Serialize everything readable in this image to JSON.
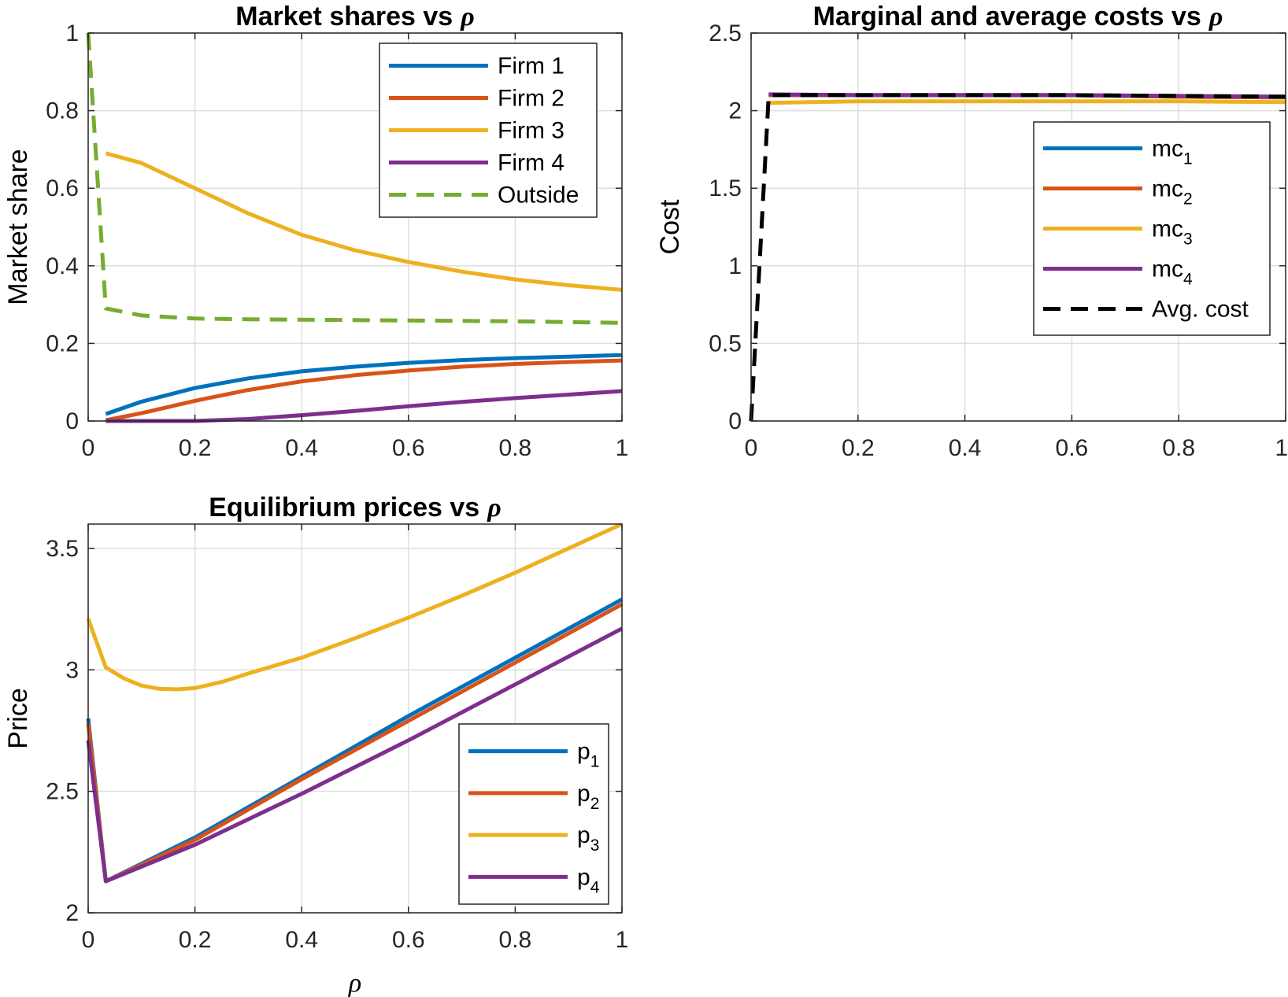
{
  "colors": {
    "c1": "#0072BD",
    "c2": "#D95319",
    "c3": "#EDB120",
    "c4": "#7E2F8E",
    "c5": "#77AC30",
    "avg": "#000000",
    "grid": "#dedede",
    "axis": "#262626"
  },
  "chart_data": [
    {
      "type": "line",
      "title": "Market shares vs",
      "title_symbol": "ρ",
      "ylabel": "Market share",
      "xlabel": "",
      "xlim": [
        0,
        1
      ],
      "ylim": [
        0,
        1
      ],
      "xticks": [
        0,
        0.2,
        0.4,
        0.6,
        0.8,
        1
      ],
      "xtick_labels": [
        "0",
        "0.2",
        "0.4",
        "0.6",
        "0.8",
        "1"
      ],
      "yticks": [
        0,
        0.2,
        0.4,
        0.6,
        0.8,
        1
      ],
      "ytick_labels": [
        "0",
        "0.2",
        "0.4",
        "0.6",
        "0.8",
        "1"
      ],
      "grid": true,
      "legend_position": "top-right",
      "series": [
        {
          "name": "Firm 1",
          "color": "c1",
          "dash": false,
          "x": [
            0.033,
            0.1,
            0.2,
            0.3,
            0.4,
            0.5,
            0.6,
            0.7,
            0.8,
            0.9,
            1.0
          ],
          "y": [
            0.018,
            0.05,
            0.085,
            0.11,
            0.128,
            0.14,
            0.15,
            0.157,
            0.162,
            0.166,
            0.17
          ]
        },
        {
          "name": "Firm 2",
          "color": "c2",
          "dash": false,
          "x": [
            0.033,
            0.1,
            0.2,
            0.3,
            0.4,
            0.5,
            0.6,
            0.7,
            0.8,
            0.9,
            1.0
          ],
          "y": [
            0.002,
            0.02,
            0.052,
            0.08,
            0.102,
            0.118,
            0.13,
            0.14,
            0.147,
            0.152,
            0.156
          ]
        },
        {
          "name": "Firm 3",
          "color": "c3",
          "dash": false,
          "x": [
            0.033,
            0.1,
            0.2,
            0.3,
            0.4,
            0.5,
            0.6,
            0.7,
            0.8,
            0.9,
            1.0
          ],
          "y": [
            0.69,
            0.665,
            0.6,
            0.535,
            0.48,
            0.44,
            0.41,
            0.385,
            0.365,
            0.35,
            0.338
          ]
        },
        {
          "name": "Firm 4",
          "color": "c4",
          "dash": false,
          "x": [
            0.033,
            0.1,
            0.2,
            0.3,
            0.4,
            0.5,
            0.6,
            0.7,
            0.8,
            0.9,
            1.0
          ],
          "y": [
            0.0,
            0.0,
            0.0,
            0.005,
            0.015,
            0.026,
            0.038,
            0.049,
            0.059,
            0.068,
            0.077
          ]
        },
        {
          "name": "Outside",
          "color": "c5",
          "dash": true,
          "x": [
            0.0,
            0.033,
            0.1,
            0.2,
            0.3,
            0.4,
            0.5,
            0.6,
            0.7,
            0.8,
            0.9,
            1.0
          ],
          "y": [
            1.0,
            0.29,
            0.272,
            0.264,
            0.262,
            0.261,
            0.26,
            0.259,
            0.258,
            0.257,
            0.255,
            0.253
          ]
        }
      ]
    },
    {
      "type": "line",
      "title": "Marginal and average costs vs",
      "title_symbol": "ρ",
      "ylabel": "Cost",
      "xlabel": "",
      "xlim": [
        0,
        1
      ],
      "ylim": [
        0,
        2.5
      ],
      "xticks": [
        0,
        0.2,
        0.4,
        0.6,
        0.8,
        1
      ],
      "xtick_labels": [
        "0",
        "0.2",
        "0.4",
        "0.6",
        "0.8",
        "1"
      ],
      "yticks": [
        0,
        0.5,
        1,
        1.5,
        2,
        2.5
      ],
      "ytick_labels": [
        "0",
        "0.5",
        "1",
        "1.5",
        "2",
        "2.5"
      ],
      "grid": true,
      "legend_position": "right",
      "series": [
        {
          "name": "mc",
          "sub": "1",
          "color": "c1",
          "dash": false,
          "x": [
            0.033,
            0.2,
            0.4,
            0.6,
            0.8,
            1.0
          ],
          "y": [
            2.1,
            2.1,
            2.1,
            2.1,
            2.09,
            2.085
          ]
        },
        {
          "name": "mc",
          "sub": "2",
          "color": "c2",
          "dash": false,
          "x": [
            0.033,
            0.2,
            0.4,
            0.6,
            0.8,
            1.0
          ],
          "y": [
            2.1,
            2.1,
            2.1,
            2.1,
            2.09,
            2.085
          ]
        },
        {
          "name": "mc",
          "sub": "3",
          "color": "c3",
          "dash": false,
          "x": [
            0.033,
            0.2,
            0.4,
            0.6,
            0.8,
            1.0
          ],
          "y": [
            2.05,
            2.06,
            2.06,
            2.06,
            2.06,
            2.055
          ]
        },
        {
          "name": "mc",
          "sub": "4",
          "color": "c4",
          "dash": false,
          "x": [
            0.033,
            0.2,
            0.4,
            0.6,
            0.8,
            1.0
          ],
          "y": [
            2.105,
            2.1,
            2.1,
            2.1,
            2.095,
            2.09
          ]
        },
        {
          "name": "Avg. cost",
          "color": "avg",
          "dash": true,
          "x": [
            0.0,
            0.033,
            0.2,
            0.4,
            0.6,
            0.8,
            1.0
          ],
          "y": [
            0.0,
            2.1,
            2.1,
            2.1,
            2.1,
            2.095,
            2.09
          ]
        }
      ]
    },
    {
      "type": "line",
      "title": "Equilibrium prices vs",
      "title_symbol": "ρ",
      "ylabel": "Price",
      "xlabel": "ρ",
      "xlim": [
        0,
        1
      ],
      "ylim": [
        2,
        3.6
      ],
      "xticks": [
        0,
        0.2,
        0.4,
        0.6,
        0.8,
        1
      ],
      "xtick_labels": [
        "0",
        "0.2",
        "0.4",
        "0.6",
        "0.8",
        "1"
      ],
      "yticks": [
        2,
        2.5,
        3,
        3.5
      ],
      "ytick_labels": [
        "2",
        "2.5",
        "3",
        "3.5"
      ],
      "grid": true,
      "legend_position": "bottom-right",
      "series": [
        {
          "name": "p",
          "sub": "1",
          "color": "c1",
          "dash": false,
          "x": [
            0.0,
            0.033,
            0.2,
            0.4,
            0.6,
            0.8,
            1.0
          ],
          "y": [
            2.8,
            2.13,
            2.31,
            2.56,
            2.81,
            3.05,
            3.29
          ]
        },
        {
          "name": "p",
          "sub": "2",
          "color": "c2",
          "dash": false,
          "x": [
            0.0,
            0.033,
            0.2,
            0.4,
            0.6,
            0.8,
            1.0
          ],
          "y": [
            2.78,
            2.13,
            2.3,
            2.55,
            2.79,
            3.03,
            3.27
          ]
        },
        {
          "name": "p",
          "sub": "3",
          "color": "c3",
          "dash": false,
          "x": [
            0.0,
            0.033,
            0.067,
            0.1,
            0.133,
            0.167,
            0.2,
            0.25,
            0.3,
            0.4,
            0.5,
            0.6,
            0.7,
            0.8,
            0.9,
            1.0
          ],
          "y": [
            3.21,
            3.01,
            2.965,
            2.935,
            2.922,
            2.92,
            2.925,
            2.95,
            2.985,
            3.05,
            3.13,
            3.215,
            3.305,
            3.4,
            3.5,
            3.6
          ]
        },
        {
          "name": "p",
          "sub": "4",
          "color": "c4",
          "dash": false,
          "x": [
            0.0,
            0.033,
            0.2,
            0.4,
            0.6,
            0.8,
            1.0
          ],
          "y": [
            2.71,
            2.13,
            2.28,
            2.49,
            2.71,
            2.94,
            3.17
          ]
        }
      ]
    }
  ]
}
